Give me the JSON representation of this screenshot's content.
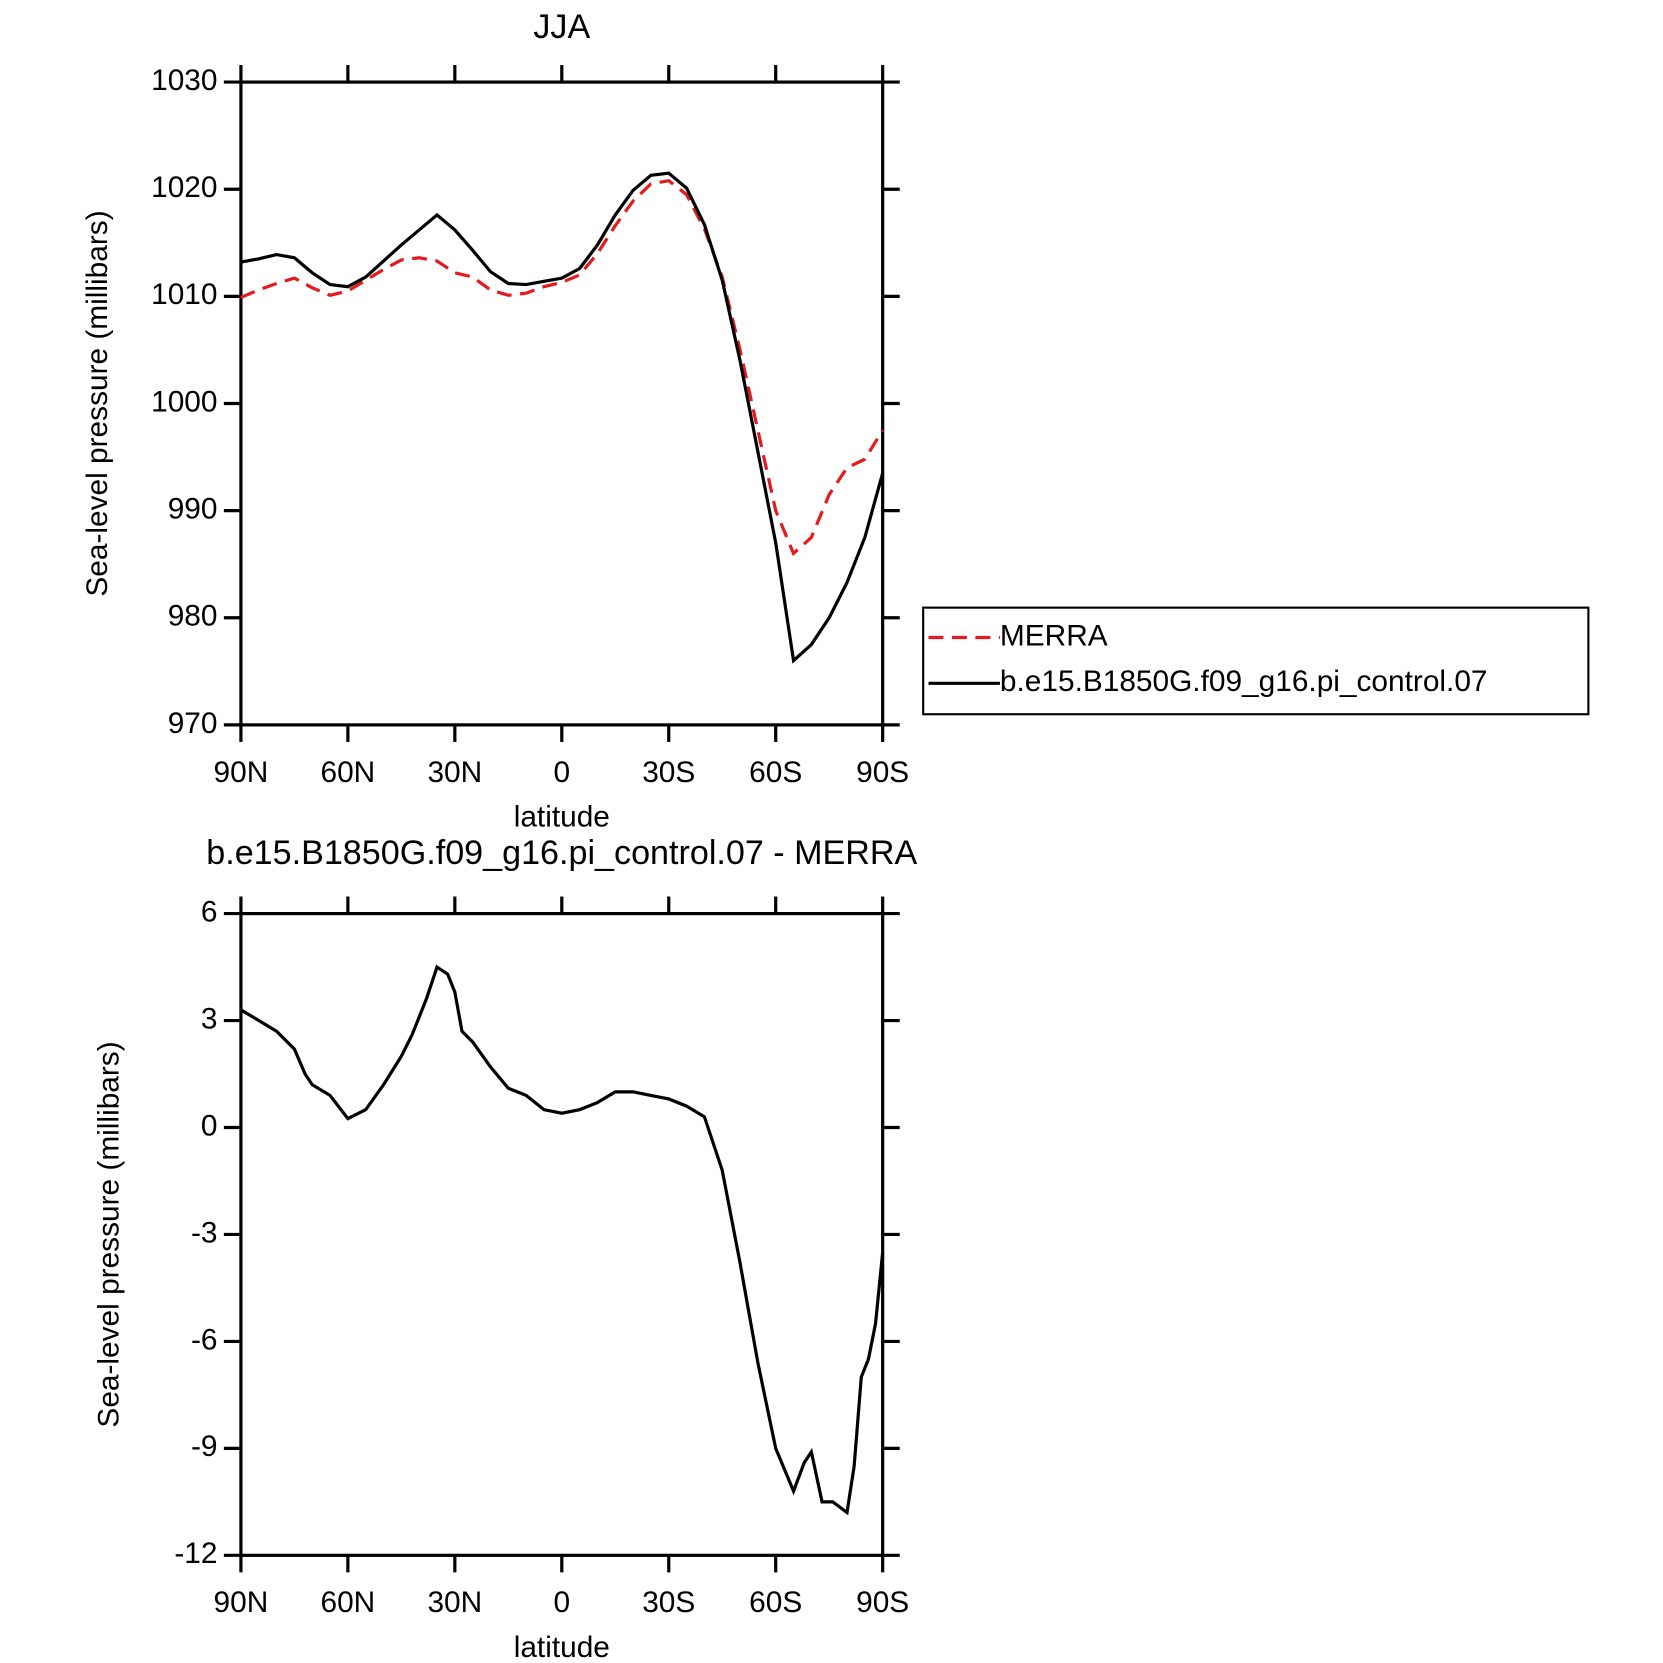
{
  "chart_data": [
    {
      "type": "line",
      "title": "JJA",
      "xlabel": "latitude",
      "ylabel": "Sea-level pressure (millibars)",
      "x": [
        90,
        85,
        80,
        75,
        70,
        65,
        60,
        55,
        50,
        45,
        40,
        35,
        30,
        25,
        20,
        15,
        10,
        5,
        0,
        -5,
        -10,
        -15,
        -20,
        -25,
        -30,
        -35,
        -40,
        -45,
        -50,
        -55,
        -60,
        -65,
        -70,
        -75,
        -80,
        -85,
        -90
      ],
      "series": [
        {
          "name": "MERRA",
          "color": "#e41a1c",
          "dashed": true,
          "values": [
            1009.9,
            1010.6,
            1011.2,
            1011.7,
            1010.8,
            1010.1,
            1010.5,
            1011.5,
            1012.5,
            1013.4,
            1013.6,
            1013.3,
            1012.2,
            1011.8,
            1010.6,
            1010.1,
            1010.3,
            1010.9,
            1011.3,
            1012.0,
            1014.0,
            1016.6,
            1018.9,
            1020.5,
            1020.8,
            1019.5,
            1016.3,
            1011.8,
            1005.0,
            997.5,
            990.0,
            986.0,
            987.5,
            991.5,
            994.0,
            994.8,
            997.5
          ]
        },
        {
          "name": "b.e15.B1850G.f09_g16.pi_control.07",
          "color": "#000000",
          "dashed": false,
          "values": [
            1013.2,
            1013.5,
            1013.9,
            1013.6,
            1012.2,
            1011.1,
            1010.9,
            1011.8,
            1013.3,
            1014.8,
            1016.2,
            1017.6,
            1016.2,
            1014.3,
            1012.3,
            1011.2,
            1011.1,
            1011.4,
            1011.7,
            1012.6,
            1014.8,
            1017.6,
            1019.9,
            1021.3,
            1021.5,
            1020.1,
            1016.7,
            1011.5,
            1004.0,
            995.5,
            987.0,
            976.0,
            977.5,
            980.0,
            983.3,
            987.5,
            993.5
          ]
        }
      ],
      "xlim": [
        90,
        -90
      ],
      "xticks": [
        {
          "value": 90,
          "label": "90N"
        },
        {
          "value": 60,
          "label": "60N"
        },
        {
          "value": 30,
          "label": "30N"
        },
        0,
        {
          "value": -30,
          "label": "30S"
        },
        {
          "value": -60,
          "label": "60S"
        },
        {
          "value": -90,
          "label": "90S"
        }
      ],
      "ylim": [
        970,
        1030
      ],
      "yticks": [
        970,
        980,
        990,
        1000,
        1010,
        1020,
        1030
      ],
      "legend": "right"
    },
    {
      "type": "line",
      "title": "b.e15.B1850G.f09_g16.pi_control.07 - MERRA",
      "xlabel": "latitude",
      "ylabel": "Sea-level pressure (millibars)",
      "x": [
        90,
        85,
        80,
        75,
        72,
        70,
        65,
        60,
        55,
        50,
        45,
        42,
        38,
        35,
        32,
        30,
        28,
        25,
        20,
        15,
        10,
        5,
        0,
        -5,
        -10,
        -15,
        -20,
        -25,
        -30,
        -35,
        -40,
        -45,
        -50,
        -55,
        -60,
        -65,
        -68,
        -70,
        -73,
        -76,
        -80,
        -82,
        -84,
        -86,
        -88,
        -90
      ],
      "series": [
        {
          "color": "#000000",
          "dashed": false,
          "values": [
            3.3,
            3.0,
            2.7,
            2.2,
            1.5,
            1.2,
            0.9,
            0.25,
            0.5,
            1.2,
            2.0,
            2.6,
            3.6,
            4.5,
            4.3,
            3.8,
            2.7,
            2.4,
            1.7,
            1.1,
            0.9,
            0.5,
            0.4,
            0.5,
            0.7,
            1.0,
            1.0,
            0.9,
            0.8,
            0.6,
            0.3,
            -1.2,
            -3.8,
            -6.6,
            -9.0,
            -10.2,
            -9.4,
            -9.1,
            -10.5,
            -10.5,
            -10.8,
            -9.5,
            -7.0,
            -6.5,
            -5.5,
            -3.5
          ]
        }
      ],
      "xlim": [
        90,
        -90
      ],
      "xticks": [
        {
          "value": 90,
          "label": "90N"
        },
        {
          "value": 60,
          "label": "60N"
        },
        {
          "value": 30,
          "label": "30N"
        },
        0,
        {
          "value": -30,
          "label": "30S"
        },
        {
          "value": -60,
          "label": "60S"
        },
        {
          "value": -90,
          "label": "90S"
        }
      ],
      "ylim": [
        -12,
        6
      ],
      "yticks": [
        -12,
        -9,
        -6,
        -3,
        0,
        3,
        6
      ]
    }
  ]
}
